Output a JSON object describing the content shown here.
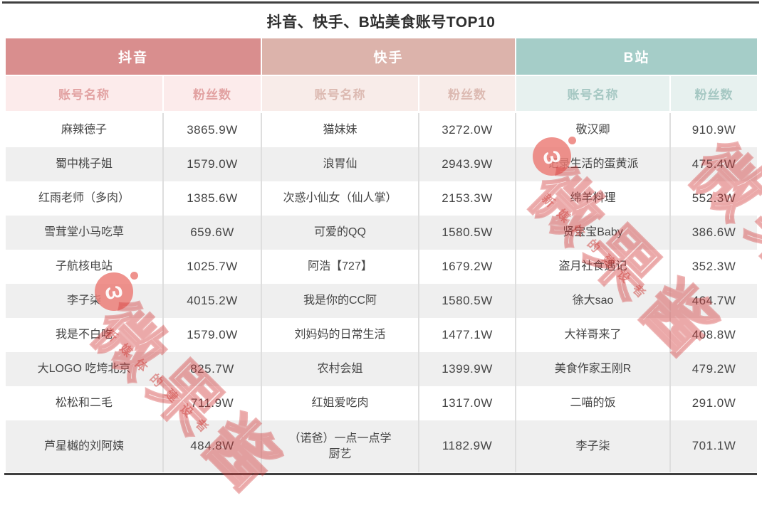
{
  "title": "抖音、快手、B站美食账号TOP10",
  "chart_data": {
    "type": "table",
    "title": "抖音、快手、B站美食账号TOP10",
    "groups": [
      {
        "platform": "抖音",
        "columns": [
          "账号名称",
          "粉丝数"
        ],
        "rows": [
          [
            "麻辣德子",
            "3865.9W"
          ],
          [
            "蜀中桃子姐",
            "1579.0W"
          ],
          [
            "红雨老师（多肉）",
            "1385.6W"
          ],
          [
            "雪茸堂小马吃草",
            "659.6W"
          ],
          [
            "子航核电站",
            "1025.7W"
          ],
          [
            "李子柒",
            "4015.2W"
          ],
          [
            "我是不白吃",
            "1579.0W"
          ],
          [
            "大LOGO 吃垮北京",
            "825.7W"
          ],
          [
            "松松和二毛",
            "711.9W"
          ],
          [
            "芦星樾的刘阿姨",
            "484.8W"
          ]
        ]
      },
      {
        "platform": "快手",
        "columns": [
          "账号名称",
          "粉丝数"
        ],
        "rows": [
          [
            "猫妹妹",
            "3272.0W"
          ],
          [
            "浪胃仙",
            "2943.9W"
          ],
          [
            "次惑小仙女（仙人掌）",
            "2153.3W"
          ],
          [
            "可爱的QQ",
            "1580.5W"
          ],
          [
            "阿浩【727】",
            "1679.2W"
          ],
          [
            "我是你的CC阿",
            "1580.5W"
          ],
          [
            "刘妈妈的日常生活",
            "1477.1W"
          ],
          [
            "农村会姐",
            "1399.9W"
          ],
          [
            "红姐爱吃肉",
            "1317.0W"
          ],
          [
            "（诺爸）一点一点学厨艺",
            "1182.9W"
          ]
        ]
      },
      {
        "platform": "B站",
        "columns": [
          "账号名称",
          "粉丝数"
        ],
        "rows": [
          [
            "敬汉卿",
            "910.9W"
          ],
          [
            "记录生活的蛋黄派",
            "475.4W"
          ],
          [
            "绵羊料理",
            "552.3W"
          ],
          [
            "贤宝宝Baby",
            "386.6W"
          ],
          [
            "盗月社食遇记",
            "352.3W"
          ],
          [
            "徐大sao",
            "464.7W"
          ],
          [
            "大祥哥来了",
            "408.8W"
          ],
          [
            "美食作家王刚R",
            "479.2W"
          ],
          [
            "二喵的饭",
            "291.0W"
          ],
          [
            "李子柒",
            "701.1W"
          ]
        ]
      }
    ],
    "layout": {
      "platform_header_colors": [
        "#d98e8e",
        "#dcb3ab",
        "#a5cdc8"
      ],
      "subheader_bg_colors": [
        "#fcebeb",
        "#f8ece9",
        "#e7f1ef"
      ],
      "subheader_text_colors": [
        "#e2a2a2",
        "#dcbab2",
        "#a6c8c3"
      ],
      "alt_row_bg": "#efefef",
      "text_color": "#454545",
      "bar_color": "#3f3f3f"
    }
  },
  "watermark": {
    "brand": "微果酱",
    "tagline": "新媒体的建设者",
    "logo_glyph": "ω"
  }
}
